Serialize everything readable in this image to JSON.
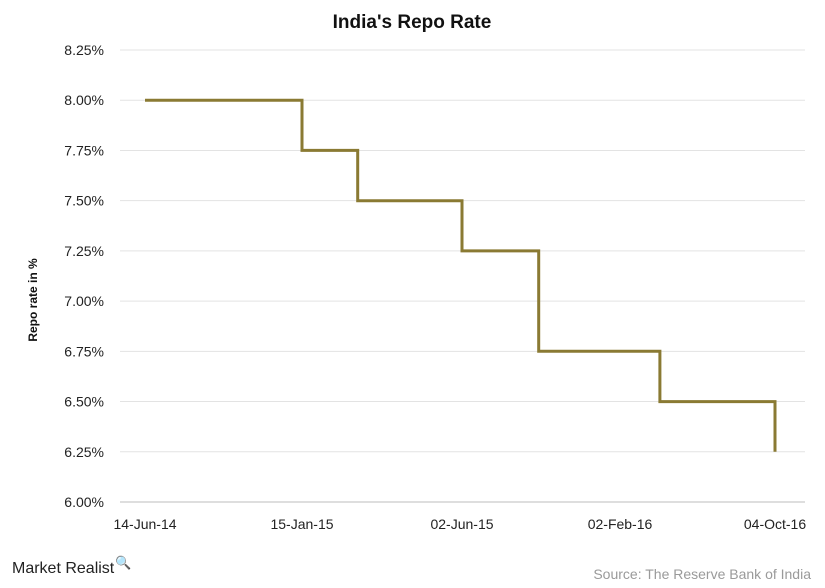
{
  "chart_data": {
    "type": "line",
    "title": "India's Repo Rate",
    "ylabel": "Repo rate in %",
    "xlabel": "",
    "ylim": [
      6.0,
      8.25
    ],
    "yticks": [
      "6.00%",
      "6.25%",
      "6.50%",
      "6.75%",
      "7.00%",
      "7.25%",
      "7.50%",
      "7.75%",
      "8.00%",
      "8.25%"
    ],
    "yvalues": [
      6.0,
      6.25,
      6.5,
      6.75,
      7.0,
      7.25,
      7.5,
      7.75,
      8.0,
      8.25
    ],
    "xticks": [
      "14-Jun-14",
      "15-Jan-15",
      "02-Jun-15",
      "02-Feb-16",
      "04-Oct-16"
    ],
    "grid": true,
    "line_color": "#8a7a33",
    "points": [
      {
        "x": "14-Jun-14",
        "y": 8.0
      },
      {
        "x": "15-Jan-15",
        "y": 8.0
      },
      {
        "x": "15-Jan-15",
        "y": 7.75
      },
      {
        "x": "04-Mar-15",
        "y": 7.75
      },
      {
        "x": "04-Mar-15",
        "y": 7.5
      },
      {
        "x": "02-Jun-15",
        "y": 7.5
      },
      {
        "x": "02-Jun-15",
        "y": 7.25
      },
      {
        "x": "29-Sep-15",
        "y": 7.25
      },
      {
        "x": "29-Sep-15",
        "y": 6.75
      },
      {
        "x": "05-Apr-16",
        "y": 6.75
      },
      {
        "x": "05-Apr-16",
        "y": 6.5
      },
      {
        "x": "04-Oct-16",
        "y": 6.5
      },
      {
        "x": "04-Oct-16",
        "y": 6.25
      }
    ]
  },
  "footer": {
    "brand": "Market Realist",
    "source": "Source: The Reserve Bank of India"
  }
}
